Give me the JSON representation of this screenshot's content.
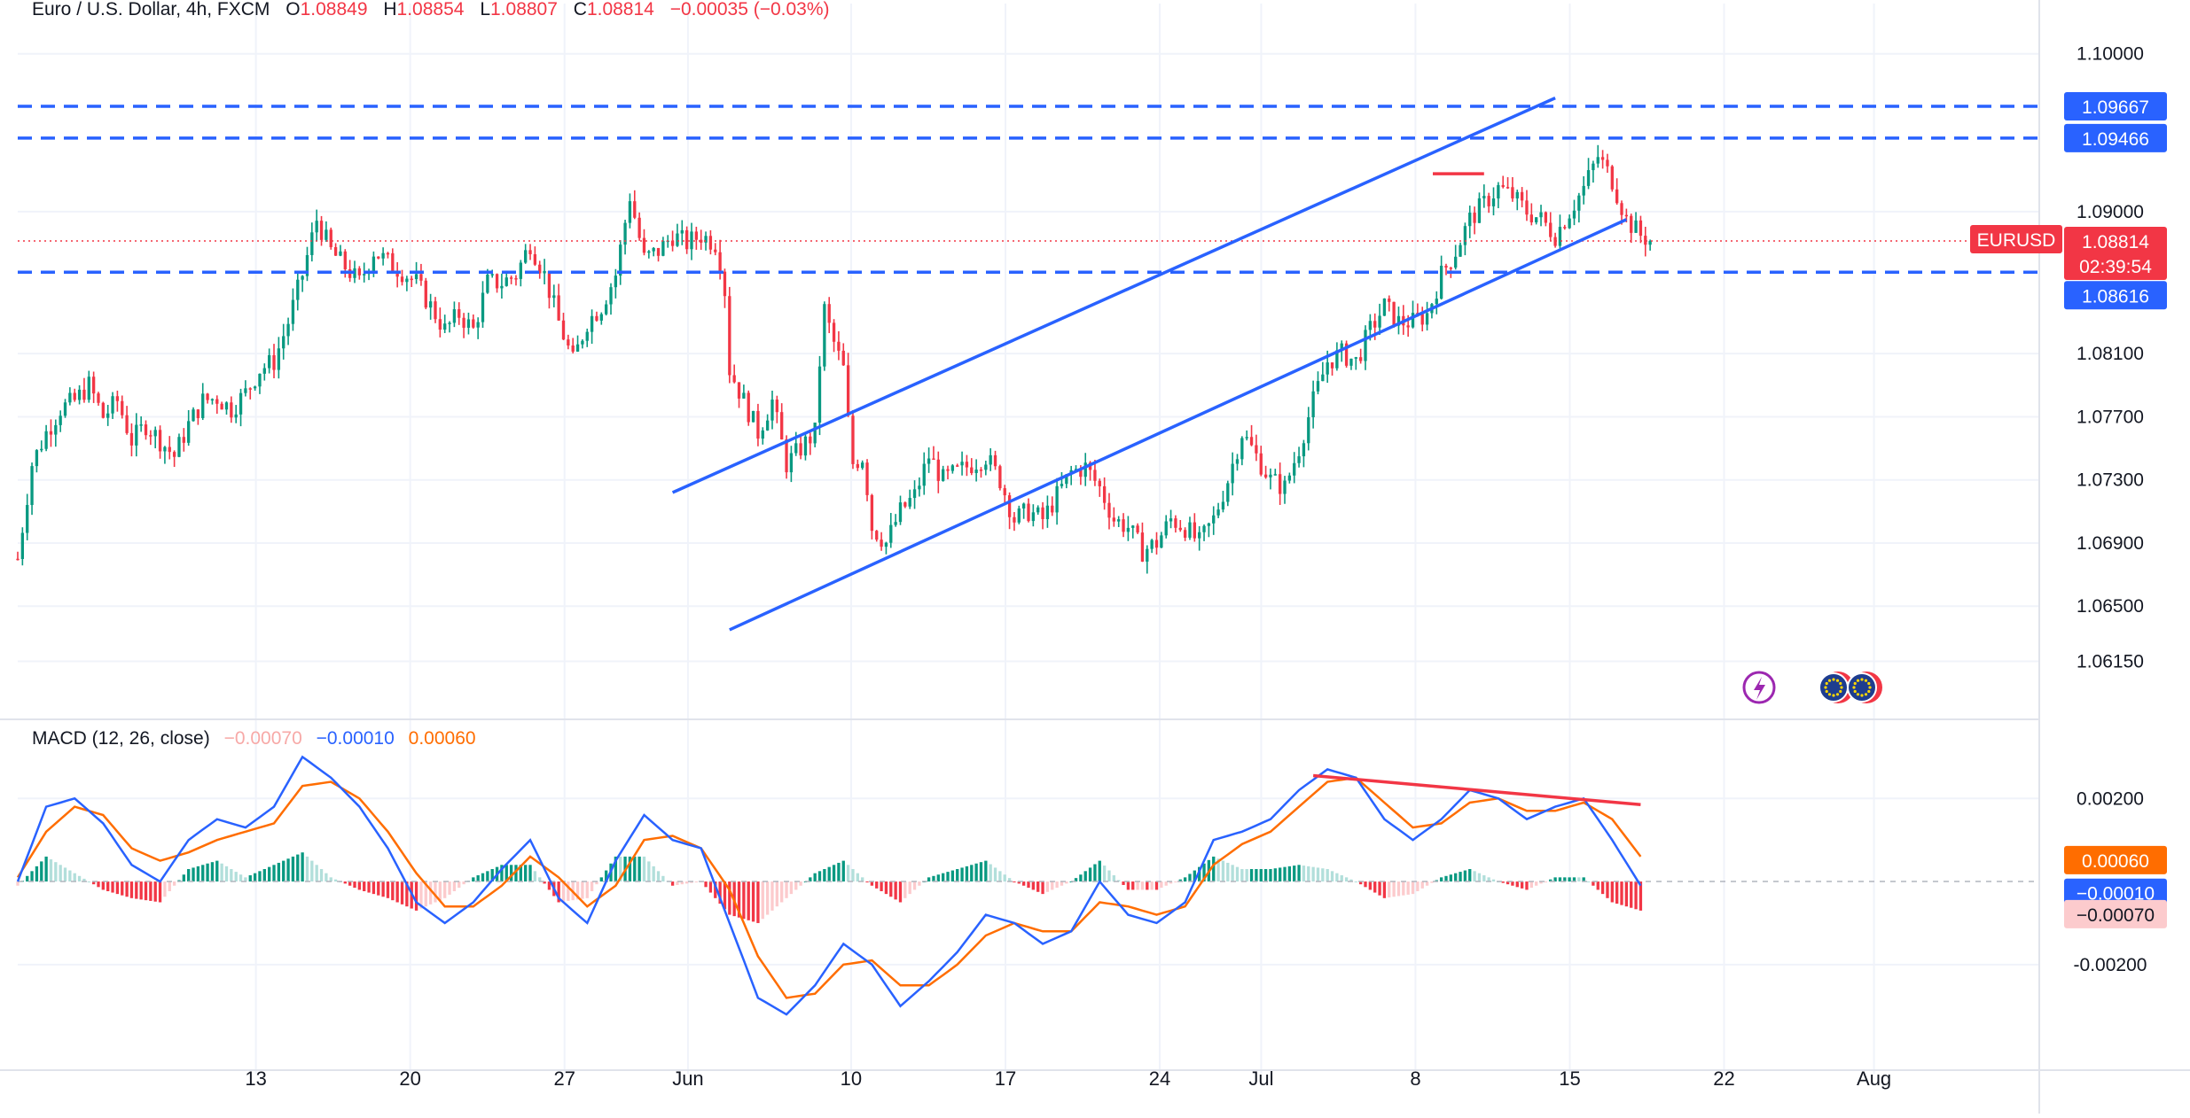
{
  "header": {
    "symbol_desc": "Euro / U.S. Dollar, 4h, FXCM",
    "open_label": "O",
    "open": "1.08849",
    "high_label": "H",
    "high": "1.08854",
    "low_label": "L",
    "low": "1.08807",
    "close_label": "C",
    "close": "1.08814",
    "change": "−0.00035 (−0.03%)"
  },
  "macd_legend": {
    "name": "MACD (12, 26, close)",
    "histogram": "−0.00070",
    "macd": "−0.00010",
    "signal": "0.00060"
  },
  "colors": {
    "up": "#089981",
    "down": "#f23645",
    "level": "#2962ff",
    "channel": "#2962ff",
    "macd": "#2962ff",
    "signal": "#ff6d00",
    "hist_pos_strong": "#089981",
    "hist_pos_weak": "#b2dfdb",
    "hist_neg_strong": "#f23645",
    "hist_neg_weak": "#fccbcd",
    "divergence": "#f23645",
    "grid": "#f0f3fa"
  },
  "icons": [
    "lightning-event-icon",
    "eu-flag-event-icon",
    "eu-flag-event-icon"
  ],
  "chart_data": [
    {
      "type": "candlestick",
      "title": "Euro / U.S. Dollar, 4h, FXCM",
      "x_ticks": [
        "13",
        "20",
        "27",
        "Jun",
        "10",
        "17",
        "24",
        "Jul",
        "8",
        "15",
        "22",
        "Aug"
      ],
      "y_ticks": [
        "1.10000",
        "1.09000",
        "1.08100",
        "1.07700",
        "1.07300",
        "1.06900",
        "1.06500",
        "1.06150"
      ],
      "ylim": [
        1.0585,
        1.1015
      ],
      "grid": true,
      "price_labels": [
        {
          "text": "1.09667",
          "value": 1.09667,
          "kind": "level"
        },
        {
          "text": "1.09466",
          "value": 1.09466,
          "kind": "level"
        },
        {
          "text": "1.08616",
          "value": 1.08616,
          "kind": "level"
        },
        {
          "text": "EURUSD",
          "value": 1.08814,
          "kind": "symbol"
        },
        {
          "text": "1.08814",
          "value": 1.08814,
          "kind": "last"
        },
        {
          "text": "02:39:54",
          "value": 1.08814,
          "kind": "countdown"
        }
      ],
      "horizontal_levels": [
        1.09667,
        1.09466,
        1.08616
      ],
      "last_price": 1.08814,
      "channel_lines": [
        {
          "from": {
            "x": 23.0,
            "y": 1.0722
          },
          "to": {
            "x": 54.0,
            "y": 1.0972
          }
        },
        {
          "from": {
            "x": 25.0,
            "y": 1.0635
          },
          "to": {
            "x": 56.5,
            "y": 1.0895
          }
        }
      ],
      "annotation_line": {
        "from": {
          "x": 49.7,
          "y": 1.0924
        },
        "to": {
          "x": 51.5,
          "y": 1.0924
        }
      },
      "price_path_note": "x in days from the start of the visible range; key (x, price) anchors of the 4h series",
      "price_path": [
        [
          0.0,
          1.068
        ],
        [
          0.5,
          1.074
        ],
        [
          1.0,
          1.076
        ],
        [
          1.5,
          1.0775
        ],
        [
          2.0,
          1.078
        ],
        [
          2.5,
          1.079
        ],
        [
          3.0,
          1.077
        ],
        [
          3.5,
          1.078
        ],
        [
          4.0,
          1.0755
        ],
        [
          4.5,
          1.0765
        ],
        [
          5.0,
          1.0755
        ],
        [
          5.5,
          1.0745
        ],
        [
          6.0,
          1.0765
        ],
        [
          6.5,
          1.078
        ],
        [
          7.0,
          1.0782
        ],
        [
          7.5,
          1.0775
        ],
        [
          8.0,
          1.0785
        ],
        [
          8.5,
          1.08
        ],
        [
          9.0,
          1.0805
        ],
        [
          9.5,
          1.083
        ],
        [
          10.0,
          1.086
        ],
        [
          10.5,
          1.0895
        ],
        [
          11.0,
          1.0875
        ],
        [
          11.5,
          1.0865
        ],
        [
          12.0,
          1.0855
        ],
        [
          12.5,
          1.0875
        ],
        [
          13.0,
          1.0868
        ],
        [
          13.5,
          1.0862
        ],
        [
          14.0,
          1.0855
        ],
        [
          14.5,
          1.084
        ],
        [
          15.0,
          1.0825
        ],
        [
          15.5,
          1.0835
        ],
        [
          16.0,
          1.0825
        ],
        [
          16.5,
          1.0855
        ],
        [
          17.0,
          1.0855
        ],
        [
          17.5,
          1.086
        ],
        [
          18.0,
          1.088
        ],
        [
          18.5,
          1.086
        ],
        [
          19.0,
          1.083
        ],
        [
          19.5,
          1.0805
        ],
        [
          20.0,
          1.083
        ],
        [
          20.5,
          1.084
        ],
        [
          21.0,
          1.086
        ],
        [
          21.5,
          1.091
        ],
        [
          22.0,
          1.087
        ],
        [
          22.5,
          1.0875
        ],
        [
          23.0,
          1.0885
        ],
        [
          23.5,
          1.088
        ],
        [
          24.0,
          1.0885
        ],
        [
          24.5,
          1.088
        ],
        [
          24.8,
          1.086
        ],
        [
          25.0,
          1.08
        ],
        [
          25.5,
          1.078
        ],
        [
          26.0,
          1.076
        ],
        [
          26.5,
          1.078
        ],
        [
          27.0,
          1.074
        ],
        [
          27.5,
          1.075
        ],
        [
          28.0,
          1.076
        ],
        [
          28.3,
          1.084
        ],
        [
          28.6,
          1.082
        ],
        [
          29.0,
          1.08
        ],
        [
          29.3,
          1.074
        ],
        [
          29.7,
          1.0745
        ],
        [
          30.0,
          1.07
        ],
        [
          30.5,
          1.069
        ],
        [
          31.0,
          1.071
        ],
        [
          31.5,
          1.072
        ],
        [
          32.0,
          1.0745
        ],
        [
          32.5,
          1.073
        ],
        [
          33.0,
          1.0735
        ],
        [
          33.5,
          1.074
        ],
        [
          34.0,
          1.0745
        ],
        [
          34.5,
          1.073
        ],
        [
          35.0,
          1.0705
        ],
        [
          35.5,
          1.071
        ],
        [
          36.0,
          1.0705
        ],
        [
          36.5,
          1.072
        ],
        [
          37.0,
          1.0735
        ],
        [
          37.5,
          1.0738
        ],
        [
          38.0,
          1.0725
        ],
        [
          38.5,
          1.0705
        ],
        [
          39.0,
          1.07
        ],
        [
          39.5,
          1.0685
        ],
        [
          40.0,
          1.069
        ],
        [
          40.5,
          1.0705
        ],
        [
          41.0,
          1.07
        ],
        [
          41.5,
          1.069
        ],
        [
          42.0,
          1.0705
        ],
        [
          42.5,
          1.073
        ],
        [
          43.0,
          1.076
        ],
        [
          43.5,
          1.0745
        ],
        [
          44.0,
          1.073
        ],
        [
          44.5,
          1.0725
        ],
        [
          45.0,
          1.075
        ],
        [
          45.5,
          1.078
        ],
        [
          46.0,
          1.0805
        ],
        [
          46.5,
          1.081
        ],
        [
          47.0,
          1.0805
        ],
        [
          47.5,
          1.0825
        ],
        [
          48.0,
          1.084
        ],
        [
          48.5,
          1.083
        ],
        [
          49.0,
          1.083
        ],
        [
          49.5,
          1.0835
        ],
        [
          50.0,
          1.086
        ],
        [
          50.5,
          1.0875
        ],
        [
          51.0,
          1.0895
        ],
        [
          51.5,
          1.0905
        ],
        [
          52.0,
          1.0915
        ],
        [
          52.5,
          1.091
        ],
        [
          53.0,
          1.09
        ],
        [
          53.5,
          1.0895
        ],
        [
          54.0,
          1.0885
        ],
        [
          54.5,
          1.09
        ],
        [
          55.0,
          1.0915
        ],
        [
          55.5,
          1.0935
        ],
        [
          56.0,
          1.092
        ],
        [
          56.5,
          1.0895
        ],
        [
          57.0,
          1.0885
        ],
        [
          57.4,
          1.0881
        ]
      ]
    },
    {
      "type": "macd",
      "title": "MACD (12, 26, close)",
      "y_ticks": [
        "0.00200",
        "-0.00200"
      ],
      "price_labels": [
        {
          "text": "0.00060",
          "value": 0.0006,
          "kind": "signal"
        },
        {
          "text": "−0.00010",
          "value": -0.0001,
          "kind": "macd"
        },
        {
          "text": "−0.00070",
          "value": -0.0007,
          "kind": "histogram"
        }
      ],
      "ylim": [
        -0.0042,
        0.0032
      ],
      "divergence_line": {
        "from": {
          "x": 45.5,
          "y": 0.00255
        },
        "to": {
          "x": 57.0,
          "y": 0.00185
        }
      },
      "macd_path": [
        [
          0.0,
          0.0
        ],
        [
          1.0,
          0.0018
        ],
        [
          2.0,
          0.002
        ],
        [
          3.0,
          0.0014
        ],
        [
          4.0,
          0.0004
        ],
        [
          5.0,
          0.0
        ],
        [
          6.0,
          0.001
        ],
        [
          7.0,
          0.0015
        ],
        [
          8.0,
          0.0013
        ],
        [
          9.0,
          0.0018
        ],
        [
          10.0,
          0.003
        ],
        [
          11.0,
          0.0025
        ],
        [
          12.0,
          0.0018
        ],
        [
          13.0,
          0.0008
        ],
        [
          14.0,
          -0.0005
        ],
        [
          15.0,
          -0.001
        ],
        [
          16.0,
          -0.0005
        ],
        [
          17.0,
          0.0003
        ],
        [
          18.0,
          0.001
        ],
        [
          19.0,
          -0.0004
        ],
        [
          20.0,
          -0.001
        ],
        [
          21.0,
          0.0005
        ],
        [
          22.0,
          0.0016
        ],
        [
          23.0,
          0.001
        ],
        [
          24.0,
          0.0008
        ],
        [
          25.0,
          -0.001
        ],
        [
          26.0,
          -0.0028
        ],
        [
          27.0,
          -0.0032
        ],
        [
          28.0,
          -0.0025
        ],
        [
          29.0,
          -0.0015
        ],
        [
          30.0,
          -0.002
        ],
        [
          31.0,
          -0.003
        ],
        [
          32.0,
          -0.0024
        ],
        [
          33.0,
          -0.0017
        ],
        [
          34.0,
          -0.0008
        ],
        [
          35.0,
          -0.001
        ],
        [
          36.0,
          -0.0015
        ],
        [
          37.0,
          -0.0012
        ],
        [
          38.0,
          0.0
        ],
        [
          39.0,
          -0.0008
        ],
        [
          40.0,
          -0.001
        ],
        [
          41.0,
          -0.0005
        ],
        [
          42.0,
          0.001
        ],
        [
          43.0,
          0.0012
        ],
        [
          44.0,
          0.0015
        ],
        [
          45.0,
          0.0022
        ],
        [
          46.0,
          0.0027
        ],
        [
          47.0,
          0.0025
        ],
        [
          48.0,
          0.0015
        ],
        [
          49.0,
          0.001
        ],
        [
          50.0,
          0.0015
        ],
        [
          51.0,
          0.0022
        ],
        [
          52.0,
          0.002
        ],
        [
          53.0,
          0.0015
        ],
        [
          54.0,
          0.0018
        ],
        [
          55.0,
          0.002
        ],
        [
          56.0,
          0.001
        ],
        [
          57.0,
          -0.0001
        ]
      ],
      "signal_path": [
        [
          0.0,
          0.0001
        ],
        [
          1.0,
          0.0012
        ],
        [
          2.0,
          0.0018
        ],
        [
          3.0,
          0.0016
        ],
        [
          4.0,
          0.0008
        ],
        [
          5.0,
          0.0005
        ],
        [
          6.0,
          0.0007
        ],
        [
          7.0,
          0.001
        ],
        [
          8.0,
          0.0012
        ],
        [
          9.0,
          0.0014
        ],
        [
          10.0,
          0.0023
        ],
        [
          11.0,
          0.0024
        ],
        [
          12.0,
          0.002
        ],
        [
          13.0,
          0.0012
        ],
        [
          14.0,
          0.0002
        ],
        [
          15.0,
          -0.0006
        ],
        [
          16.0,
          -0.0006
        ],
        [
          17.0,
          -0.0001
        ],
        [
          18.0,
          0.0006
        ],
        [
          19.0,
          0.0001
        ],
        [
          20.0,
          -0.0006
        ],
        [
          21.0,
          -0.0001
        ],
        [
          22.0,
          0.001
        ],
        [
          23.0,
          0.0011
        ],
        [
          24.0,
          0.0008
        ],
        [
          25.0,
          -0.0002
        ],
        [
          26.0,
          -0.0018
        ],
        [
          27.0,
          -0.0028
        ],
        [
          28.0,
          -0.0027
        ],
        [
          29.0,
          -0.002
        ],
        [
          30.0,
          -0.0019
        ],
        [
          31.0,
          -0.0025
        ],
        [
          32.0,
          -0.0025
        ],
        [
          33.0,
          -0.002
        ],
        [
          34.0,
          -0.0013
        ],
        [
          35.0,
          -0.001
        ],
        [
          36.0,
          -0.0012
        ],
        [
          37.0,
          -0.0012
        ],
        [
          38.0,
          -0.0005
        ],
        [
          39.0,
          -0.0006
        ],
        [
          40.0,
          -0.0008
        ],
        [
          41.0,
          -0.0006
        ],
        [
          42.0,
          0.0004
        ],
        [
          43.0,
          0.0009
        ],
        [
          44.0,
          0.0012
        ],
        [
          45.0,
          0.0018
        ],
        [
          46.0,
          0.0024
        ],
        [
          47.0,
          0.0025
        ],
        [
          48.0,
          0.0019
        ],
        [
          49.0,
          0.0013
        ],
        [
          50.0,
          0.0014
        ],
        [
          51.0,
          0.0019
        ],
        [
          52.0,
          0.002
        ],
        [
          53.0,
          0.0017
        ],
        [
          54.0,
          0.0017
        ],
        [
          55.0,
          0.0019
        ],
        [
          56.0,
          0.0015
        ],
        [
          57.0,
          0.0006
        ]
      ]
    }
  ]
}
